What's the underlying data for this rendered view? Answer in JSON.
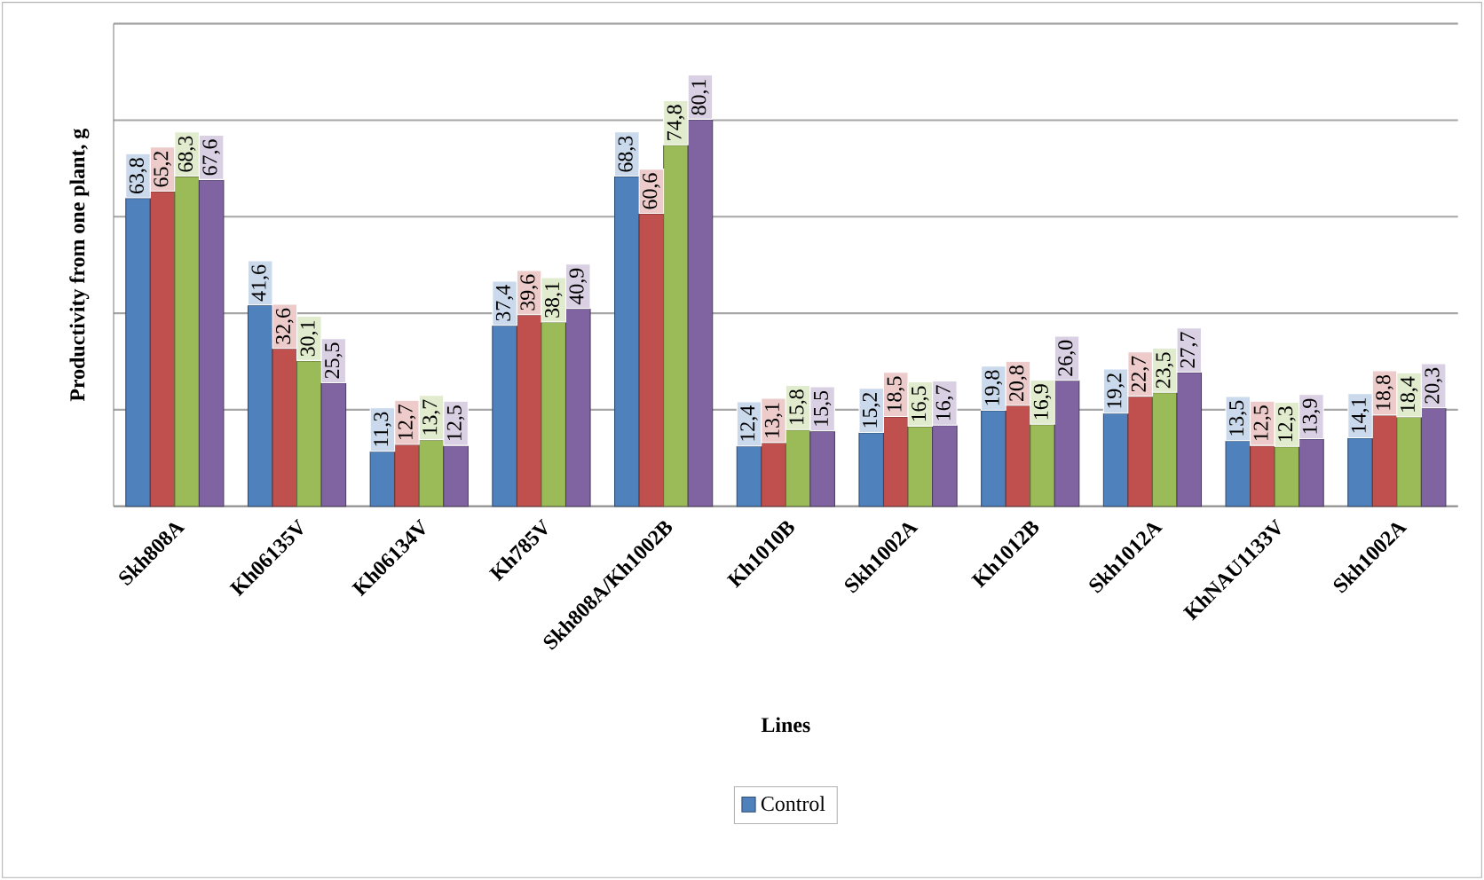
{
  "chart_data": {
    "type": "bar",
    "xlabel": "Lines",
    "ylabel": "Productivity from one plant, g",
    "categories": [
      "Skh808A",
      "Kh06135V",
      "Kh06134V",
      "Kh785V",
      "Skh808A/Kh1002B",
      "Kh1010B",
      "Skh1002A",
      "Kh1012B",
      "Skh1012A",
      "KhNAU1133V",
      "Skh1002A"
    ],
    "series": [
      {
        "name": "Control",
        "color": "#4f81bd",
        "values": [
          63.8,
          41.6,
          11.3,
          37.4,
          68.3,
          12.4,
          15.2,
          19.8,
          19.2,
          13.5,
          14.1
        ],
        "value_labels": [
          "63,8",
          "41,6",
          "11,3",
          "37,4",
          "68,3",
          "12,4",
          "15,2",
          "19,8",
          "19,2",
          "13,5",
          "14,1"
        ]
      },
      {
        "color": "#c0504d",
        "values": [
          65.2,
          32.6,
          12.7,
          39.6,
          60.6,
          13.1,
          18.5,
          20.8,
          22.7,
          12.5,
          18.8
        ],
        "value_labels": [
          "65,2",
          "32,6",
          "12,7",
          "39,6",
          "60,6",
          "13,1",
          "18,5",
          "20,8",
          "22,7",
          "12,5",
          "18,8"
        ]
      },
      {
        "color": "#9bbb59",
        "values": [
          68.3,
          30.1,
          13.7,
          38.1,
          74.8,
          15.8,
          16.5,
          16.9,
          23.5,
          12.3,
          18.4
        ],
        "value_labels": [
          "68,3",
          "30,1",
          "13,7",
          "38,1",
          "74,8",
          "15,8",
          "16,5",
          "16,9",
          "23,5",
          "12,3",
          "18,4"
        ]
      },
      {
        "color": "#8064a2",
        "values": [
          67.6,
          25.5,
          12.5,
          40.9,
          80.1,
          15.5,
          16.7,
          26.0,
          27.7,
          13.9,
          20.3
        ],
        "value_labels": [
          "67,6",
          "25,5",
          "12,5",
          "40,9",
          "80,1",
          "15,5",
          "16,7",
          "26,0",
          "27,7",
          "13,9",
          "20,3"
        ]
      }
    ],
    "ylim": [
      0,
      100
    ],
    "yticks": [
      {
        "value": 0,
        "label": null
      },
      {
        "value": 20,
        "label": null
      },
      {
        "value": 40,
        "label": null
      },
      {
        "value": 60,
        "label": null
      },
      {
        "value": 80,
        "label": null
      },
      {
        "value": 100,
        "label": null
      }
    ],
    "grid": "y",
    "legend": "bottom"
  }
}
